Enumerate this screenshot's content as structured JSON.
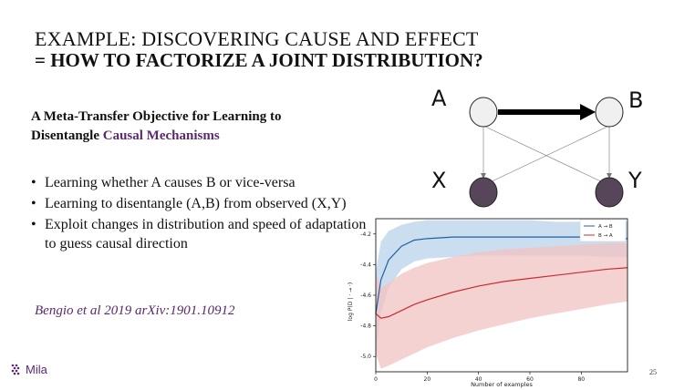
{
  "slide": {
    "title_line1": "EXAMPLE: DISCOVERING CAUSE AND EFFECT",
    "title_line2": "= HOW TO FACTORIZE A JOINT DISTRIBUTION?",
    "paper_title_part1": "A Meta-Transfer Objective for Learning to Disentangle",
    "paper_title_accent": "Causal Mechanisms",
    "bullets": [
      "Learning whether A causes B or vice-versa",
      "Learning to disentangle (A,B) from observed (X,Y)",
      "Exploit changes in distribution and speed of adaptation to guess causal direction"
    ],
    "citation": "Bengio et al 2019 arXiv:1901.10912",
    "logo_text": "Mila",
    "page_number": "25",
    "colors": {
      "accent": "#5b2a6e",
      "dark_node": "#574559"
    }
  },
  "diagram": {
    "node_labels": {
      "A": "A",
      "B": "B",
      "X": "X",
      "Y": "Y"
    }
  },
  "chart_data": {
    "type": "line",
    "xlabel": "Number of examples",
    "ylabel": "log P(D | · → ·)",
    "xlim": [
      0,
      98
    ],
    "ylim": [
      -5.1,
      -4.1
    ],
    "xticks": [
      0,
      20,
      40,
      60,
      80
    ],
    "yticks": [
      -4.2,
      -4.4,
      -4.6,
      -4.8,
      -5.0
    ],
    "ytick_labels": [
      "-4.2",
      "-4.4",
      "-4.6",
      "-4.8",
      "-5.0"
    ],
    "legend_position": "top-right",
    "series": [
      {
        "name": "A → B",
        "color": "#1f5fa8",
        "band_color": "#b9d3ea",
        "x": [
          0,
          2,
          5,
          10,
          15,
          20,
          30,
          40,
          50,
          60,
          70,
          80,
          90,
          98
        ],
        "values": [
          -4.72,
          -4.5,
          -4.37,
          -4.28,
          -4.24,
          -4.23,
          -4.22,
          -4.22,
          -4.22,
          -4.22,
          -4.22,
          -4.22,
          -4.23,
          -4.23
        ],
        "upper": [
          -4.45,
          -4.25,
          -4.18,
          -4.14,
          -4.12,
          -4.11,
          -4.11,
          -4.11,
          -4.11,
          -4.11,
          -4.12,
          -4.12,
          -4.12,
          -4.12
        ],
        "lower": [
          -4.98,
          -4.72,
          -4.55,
          -4.43,
          -4.38,
          -4.36,
          -4.35,
          -4.34,
          -4.34,
          -4.34,
          -4.34,
          -4.34,
          -4.35,
          -4.35
        ]
      },
      {
        "name": "B → A",
        "color": "#cc2b2b",
        "band_color": "#f2c3c3",
        "x": [
          0,
          2,
          5,
          10,
          15,
          20,
          30,
          40,
          50,
          60,
          70,
          80,
          90,
          98
        ],
        "values": [
          -4.72,
          -4.75,
          -4.74,
          -4.7,
          -4.66,
          -4.63,
          -4.58,
          -4.54,
          -4.51,
          -4.49,
          -4.47,
          -4.45,
          -4.43,
          -4.42
        ],
        "upper": [
          -4.45,
          -4.55,
          -4.52,
          -4.46,
          -4.42,
          -4.39,
          -4.35,
          -4.32,
          -4.3,
          -4.29,
          -4.28,
          -4.27,
          -4.26,
          -4.26
        ],
        "lower": [
          -4.98,
          -5.08,
          -5.06,
          -5.02,
          -4.98,
          -4.94,
          -4.88,
          -4.83,
          -4.79,
          -4.75,
          -4.72,
          -4.69,
          -4.66,
          -4.64
        ]
      }
    ]
  }
}
